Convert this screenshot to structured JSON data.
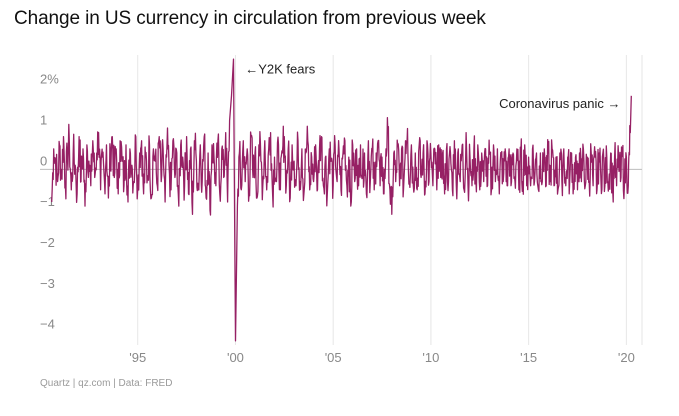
{
  "title": "Change in US currency in circulation from previous week",
  "credit": "Quartz | qz.com | Data: FRED",
  "chart_data": {
    "type": "line",
    "title": "Change in US currency in circulation from previous week",
    "xlabel": "",
    "ylabel": "",
    "xlim": [
      1990.0,
      2020.8
    ],
    "ylim": [
      -4.3,
      2.8
    ],
    "x_ticks": [
      1995,
      2000,
      2005,
      2010,
      2015,
      2020
    ],
    "x_tick_labels": [
      "'95",
      "'00",
      "'05",
      "'10",
      "'15",
      "'20"
    ],
    "y_ticks": [
      2,
      1,
      0,
      -1,
      -2,
      -3,
      -4
    ],
    "y_tick_labels": [
      "2%",
      "1",
      "0",
      "−1",
      "−2",
      "−3",
      "−4"
    ],
    "grid": "vertical",
    "color": "#962064",
    "series": [
      {
        "values_sampled_monthly_approx": [
          [
            1990.6,
            -0.8
          ],
          [
            1990.7,
            0.5
          ],
          [
            1990.8,
            0.2
          ],
          [
            1990.9,
            -0.3
          ],
          [
            1991.0,
            0.6
          ],
          [
            1991.1,
            -0.2
          ],
          [
            1991.2,
            0.8
          ],
          [
            1991.3,
            -0.4
          ],
          [
            1991.4,
            0.3
          ],
          [
            1991.5,
            0.7
          ],
          [
            1991.6,
            -0.5
          ],
          [
            1991.7,
            0.4
          ],
          [
            1991.8,
            0.1
          ],
          [
            1991.9,
            -0.6
          ],
          [
            1992.0,
            0.8
          ],
          [
            1992.1,
            -0.3
          ],
          [
            1992.2,
            0.5
          ],
          [
            1992.3,
            -0.9
          ],
          [
            1992.4,
            0.6
          ],
          [
            1992.5,
            0.2
          ],
          [
            1992.6,
            -0.4
          ],
          [
            1992.7,
            0.7
          ],
          [
            1992.8,
            -0.2
          ],
          [
            1992.9,
            0.4
          ],
          [
            1993.0,
            0.9
          ],
          [
            1993.1,
            -0.5
          ],
          [
            1993.2,
            0.3
          ],
          [
            1993.3,
            -0.3
          ],
          [
            1993.4,
            0.6
          ],
          [
            1993.5,
            -0.7
          ],
          [
            1993.6,
            0.4
          ],
          [
            1993.7,
            0.8
          ],
          [
            1993.8,
            -0.2
          ],
          [
            1993.9,
            0.5
          ],
          [
            1994.0,
            -0.6
          ],
          [
            1994.1,
            0.7
          ],
          [
            1994.2,
            0.2
          ],
          [
            1994.3,
            -0.4
          ],
          [
            1994.4,
            0.6
          ],
          [
            1994.5,
            -0.8
          ],
          [
            1994.6,
            0.5
          ],
          [
            1994.7,
            0.1
          ],
          [
            1994.8,
            -0.3
          ],
          [
            1994.9,
            0.8
          ],
          [
            1995.0,
            -0.5
          ],
          [
            1995.1,
            0.4
          ],
          [
            1995.2,
            0.7
          ],
          [
            1995.3,
            -0.6
          ],
          [
            1995.4,
            0.3
          ],
          [
            1995.5,
            -0.2
          ],
          [
            1995.6,
            0.6
          ],
          [
            1995.7,
            -0.7
          ],
          [
            1995.8,
            0.5
          ],
          [
            1995.9,
            0.2
          ],
          [
            1996.0,
            -0.4
          ],
          [
            1996.1,
            0.8
          ],
          [
            1996.2,
            -0.3
          ],
          [
            1996.3,
            0.5
          ],
          [
            1996.4,
            -0.8
          ],
          [
            1996.5,
            0.6
          ],
          [
            1996.6,
            0.1
          ],
          [
            1996.7,
            -0.5
          ],
          [
            1996.8,
            0.7
          ],
          [
            1996.9,
            -0.2
          ],
          [
            1997.0,
            0.4
          ],
          [
            1997.1,
            -0.9
          ],
          [
            1997.2,
            0.6
          ],
          [
            1997.3,
            0.3
          ],
          [
            1997.4,
            -0.4
          ],
          [
            1997.5,
            0.8
          ],
          [
            1997.6,
            -0.6
          ],
          [
            1997.7,
            0.5
          ],
          [
            1997.8,
            -1.1
          ],
          [
            1997.9,
            0.7
          ],
          [
            1998.0,
            0.2
          ],
          [
            1998.1,
            -0.5
          ],
          [
            1998.2,
            0.6
          ],
          [
            1998.3,
            -0.3
          ],
          [
            1998.4,
            0.8
          ],
          [
            1998.5,
            -0.7
          ],
          [
            1998.6,
            0.4
          ],
          [
            1998.7,
            -1.0
          ],
          [
            1998.8,
            0.6
          ],
          [
            1998.9,
            0.3
          ],
          [
            1999.0,
            -0.4
          ],
          [
            1999.1,
            0.7
          ],
          [
            1999.2,
            -0.6
          ],
          [
            1999.3,
            0.5
          ],
          [
            1999.4,
            -0.2
          ],
          [
            1999.5,
            0.9
          ],
          [
            1999.6,
            -0.8
          ],
          [
            1999.7,
            1.2
          ],
          [
            1999.8,
            1.8
          ],
          [
            1999.9,
            2.7
          ],
          [
            2000.0,
            -4.2
          ],
          [
            2000.1,
            -0.9
          ],
          [
            2000.2,
            0.4
          ],
          [
            2000.3,
            -0.5
          ],
          [
            2000.4,
            0.7
          ],
          [
            2000.5,
            -0.3
          ],
          [
            2000.6,
            0.5
          ],
          [
            2000.7,
            -0.6
          ],
          [
            2000.8,
            0.8
          ],
          [
            2000.9,
            -0.2
          ],
          [
            2001.0,
            0.4
          ],
          [
            2001.1,
            -0.7
          ],
          [
            2001.2,
            0.6
          ],
          [
            2001.3,
            0.2
          ],
          [
            2001.4,
            -0.4
          ],
          [
            2001.5,
            0.7
          ],
          [
            2001.6,
            -0.5
          ],
          [
            2001.7,
            0.5
          ],
          [
            2001.8,
            0.9
          ],
          [
            2001.9,
            -0.6
          ],
          [
            2002.0,
            0.3
          ],
          [
            2002.1,
            -0.3
          ],
          [
            2002.2,
            0.6
          ],
          [
            2002.3,
            -0.5
          ],
          [
            2002.4,
            0.4
          ],
          [
            2002.5,
            0.8
          ],
          [
            2002.6,
            -0.4
          ],
          [
            2002.7,
            0.5
          ],
          [
            2002.8,
            -0.7
          ],
          [
            2002.9,
            0.6
          ],
          [
            2003.0,
            0.2
          ],
          [
            2003.1,
            -0.4
          ],
          [
            2003.2,
            0.7
          ],
          [
            2003.3,
            -0.3
          ],
          [
            2003.4,
            0.5
          ],
          [
            2003.5,
            -0.6
          ],
          [
            2003.6,
            0.4
          ],
          [
            2003.7,
            0.7
          ],
          [
            2003.8,
            -0.5
          ],
          [
            2003.9,
            0.3
          ],
          [
            2004.0,
            -0.3
          ],
          [
            2004.1,
            0.6
          ],
          [
            2004.2,
            -0.5
          ],
          [
            2004.3,
            0.5
          ],
          [
            2004.4,
            0.8
          ],
          [
            2004.5,
            -0.4
          ],
          [
            2004.6,
            0.3
          ],
          [
            2004.7,
            -0.6
          ],
          [
            2004.8,
            0.5
          ],
          [
            2004.9,
            0.2
          ],
          [
            2005.0,
            -0.4
          ],
          [
            2005.1,
            0.6
          ],
          [
            2005.2,
            -0.3
          ],
          [
            2005.3,
            0.5
          ],
          [
            2005.4,
            -0.5
          ],
          [
            2005.5,
            0.4
          ],
          [
            2005.6,
            0.7
          ],
          [
            2005.7,
            -0.4
          ],
          [
            2005.8,
            0.3
          ],
          [
            2005.9,
            -0.9
          ],
          [
            2006.0,
            0.6
          ],
          [
            2006.1,
            -0.3
          ],
          [
            2006.2,
            0.5
          ],
          [
            2006.3,
            -0.4
          ],
          [
            2006.4,
            0.6
          ],
          [
            2006.5,
            -0.2
          ],
          [
            2006.6,
            0.4
          ],
          [
            2006.7,
            -0.6
          ],
          [
            2006.8,
            0.7
          ],
          [
            2006.9,
            -0.3
          ],
          [
            2007.0,
            0.5
          ],
          [
            2007.1,
            -0.5
          ],
          [
            2007.2,
            0.4
          ],
          [
            2007.3,
            0.7
          ],
          [
            2007.4,
            -0.4
          ],
          [
            2007.5,
            0.3
          ],
          [
            2007.6,
            -0.6
          ],
          [
            2007.7,
            0.5
          ],
          [
            2007.8,
            0.9
          ],
          [
            2007.9,
            -0.5
          ],
          [
            2008.0,
            -1.1
          ],
          [
            2008.1,
            0.4
          ],
          [
            2008.2,
            -0.3
          ],
          [
            2008.3,
            0.6
          ],
          [
            2008.4,
            -0.4
          ],
          [
            2008.5,
            0.5
          ],
          [
            2008.6,
            -0.5
          ],
          [
            2008.7,
            0.7
          ],
          [
            2008.8,
            1.0
          ],
          [
            2008.9,
            -0.3
          ],
          [
            2009.0,
            0.6
          ],
          [
            2009.1,
            -0.4
          ],
          [
            2009.2,
            0.4
          ],
          [
            2009.3,
            -0.5
          ],
          [
            2009.4,
            0.6
          ],
          [
            2009.5,
            -0.2
          ],
          [
            2009.6,
            0.4
          ],
          [
            2009.7,
            -0.6
          ],
          [
            2009.8,
            0.7
          ],
          [
            2009.9,
            -0.3
          ],
          [
            2010.0,
            0.4
          ],
          [
            2010.1,
            -0.4
          ],
          [
            2010.2,
            0.5
          ],
          [
            2010.3,
            -0.5
          ],
          [
            2010.4,
            0.6
          ],
          [
            2010.5,
            -0.2
          ],
          [
            2010.6,
            0.4
          ],
          [
            2010.7,
            -0.6
          ],
          [
            2010.8,
            0.5
          ],
          [
            2010.9,
            -0.3
          ],
          [
            2011.0,
            0.4
          ],
          [
            2011.1,
            -0.5
          ],
          [
            2011.2,
            0.7
          ],
          [
            2011.3,
            -0.4
          ],
          [
            2011.4,
            0.5
          ],
          [
            2011.5,
            -0.3
          ],
          [
            2011.6,
            0.6
          ],
          [
            2011.7,
            -0.5
          ],
          [
            2011.8,
            0.9
          ],
          [
            2011.9,
            -0.4
          ],
          [
            2012.0,
            0.3
          ],
          [
            2012.1,
            -0.4
          ],
          [
            2012.2,
            0.5
          ],
          [
            2012.3,
            -0.3
          ],
          [
            2012.4,
            0.6
          ],
          [
            2012.5,
            -0.5
          ],
          [
            2012.6,
            0.4
          ],
          [
            2012.7,
            -0.3
          ],
          [
            2012.8,
            0.5
          ],
          [
            2012.9,
            -0.4
          ],
          [
            2013.0,
            0.4
          ],
          [
            2013.1,
            -0.5
          ],
          [
            2013.2,
            0.6
          ],
          [
            2013.3,
            -0.3
          ],
          [
            2013.4,
            0.5
          ],
          [
            2013.5,
            -0.6
          ],
          [
            2013.6,
            0.4
          ],
          [
            2013.7,
            -0.3
          ],
          [
            2013.8,
            0.5
          ],
          [
            2013.9,
            -0.4
          ],
          [
            2014.0,
            0.5
          ],
          [
            2014.1,
            -0.4
          ],
          [
            2014.2,
            0.4
          ],
          [
            2014.3,
            -0.3
          ],
          [
            2014.4,
            0.5
          ],
          [
            2014.5,
            -0.5
          ],
          [
            2014.6,
            0.4
          ],
          [
            2014.7,
            -0.3
          ],
          [
            2014.8,
            0.6
          ],
          [
            2014.9,
            -0.4
          ],
          [
            2015.0,
            0.3
          ],
          [
            2015.1,
            -0.4
          ],
          [
            2015.2,
            0.5
          ],
          [
            2015.3,
            -0.3
          ],
          [
            2015.4,
            0.4
          ],
          [
            2015.5,
            -0.5
          ],
          [
            2015.6,
            0.4
          ],
          [
            2015.7,
            -0.3
          ],
          [
            2015.8,
            0.5
          ],
          [
            2015.9,
            -0.4
          ],
          [
            2016.0,
            0.4
          ],
          [
            2016.1,
            -0.3
          ],
          [
            2016.2,
            0.5
          ],
          [
            2016.3,
            -0.4
          ],
          [
            2016.4,
            0.3
          ],
          [
            2016.5,
            -0.5
          ],
          [
            2016.6,
            0.4
          ],
          [
            2016.7,
            -0.3
          ],
          [
            2016.8,
            0.5
          ],
          [
            2016.9,
            -0.4
          ],
          [
            2017.0,
            0.3
          ],
          [
            2017.1,
            -0.3
          ],
          [
            2017.2,
            0.4
          ],
          [
            2017.3,
            -0.4
          ],
          [
            2017.4,
            0.3
          ],
          [
            2017.5,
            -0.5
          ],
          [
            2017.6,
            0.4
          ],
          [
            2017.7,
            -0.3
          ],
          [
            2017.8,
            0.5
          ],
          [
            2017.9,
            -0.4
          ],
          [
            2018.0,
            0.3
          ],
          [
            2018.1,
            -0.3
          ],
          [
            2018.2,
            0.4
          ],
          [
            2018.3,
            -0.4
          ],
          [
            2018.4,
            0.3
          ],
          [
            2018.5,
            -0.5
          ],
          [
            2018.6,
            0.4
          ],
          [
            2018.7,
            -0.3
          ],
          [
            2018.8,
            0.4
          ],
          [
            2018.9,
            -0.4
          ],
          [
            2019.0,
            0.3
          ],
          [
            2019.1,
            -0.3
          ],
          [
            2019.2,
            0.4
          ],
          [
            2019.3,
            -0.5
          ],
          [
            2019.4,
            0.3
          ],
          [
            2019.5,
            -0.4
          ],
          [
            2019.6,
            0.4
          ],
          [
            2019.7,
            -0.3
          ],
          [
            2019.8,
            0.4
          ],
          [
            2019.9,
            -0.4
          ],
          [
            2020.0,
            0.3
          ],
          [
            2020.1,
            -0.4
          ],
          [
            2020.15,
            0.4
          ],
          [
            2020.2,
            0.9
          ],
          [
            2020.25,
            1.8
          ]
        ]
      }
    ],
    "annotations": [
      {
        "text": "←Y2K fears",
        "x": 2000.5,
        "y": 2.35
      },
      {
        "text": "Coronavirus panic →",
        "x": 2019.7,
        "y": 1.5,
        "anchor": "end"
      }
    ]
  }
}
